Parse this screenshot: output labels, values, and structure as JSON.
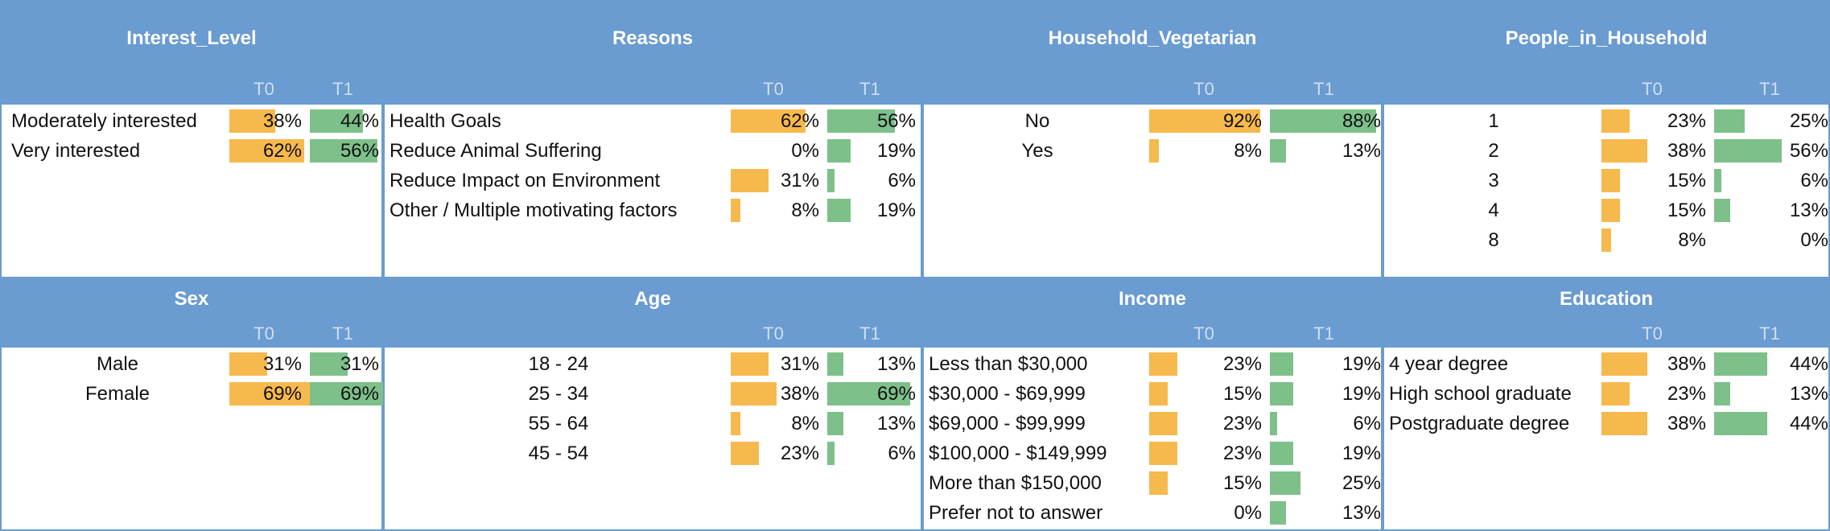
{
  "chart_data": [
    {
      "type": "bar",
      "title": "Interest_Level",
      "series": [
        {
          "name": "T0",
          "values": [
            38,
            62
          ]
        },
        {
          "name": "T1",
          "values": [
            44,
            56
          ]
        }
      ],
      "categories": [
        "Moderately interested",
        "Very interested"
      ],
      "value_labels": {
        "T0": [
          "38%",
          "62%"
        ],
        "T1": [
          "44%",
          "56%"
        ]
      },
      "category_align": "left"
    },
    {
      "type": "bar",
      "title": "Reasons",
      "series": [
        {
          "name": "T0",
          "values": [
            62,
            0,
            31,
            8
          ]
        },
        {
          "name": "T1",
          "values": [
            56,
            19,
            6,
            19
          ]
        }
      ],
      "categories": [
        "Health Goals",
        "Reduce Animal Suffering",
        "Reduce Impact on Environment",
        "Other / Multiple motivating factors"
      ],
      "value_labels": {
        "T0": [
          "62%",
          "0%",
          "31%",
          "8%"
        ],
        "T1": [
          "56%",
          "19%",
          "6%",
          "19%"
        ]
      },
      "category_align": "left"
    },
    {
      "type": "bar",
      "title": "Household_Vegetarian",
      "series": [
        {
          "name": "T0",
          "values": [
            92,
            8
          ]
        },
        {
          "name": "T1",
          "values": [
            88,
            13
          ]
        }
      ],
      "categories": [
        "No",
        "Yes"
      ],
      "value_labels": {
        "T0": [
          "92%",
          "8%"
        ],
        "T1": [
          "88%",
          "13%"
        ]
      },
      "category_align": "center"
    },
    {
      "type": "bar",
      "title": "People_in_Household",
      "series": [
        {
          "name": "T0",
          "values": [
            23,
            38,
            15,
            15,
            8
          ]
        },
        {
          "name": "T1",
          "values": [
            25,
            56,
            6,
            13,
            0
          ]
        }
      ],
      "categories": [
        "1",
        "2",
        "3",
        "4",
        "8"
      ],
      "value_labels": {
        "T0": [
          "23%",
          "38%",
          "15%",
          "15%",
          "8%"
        ],
        "T1": [
          "25%",
          "56%",
          "6%",
          "13%",
          "0%"
        ]
      },
      "category_align": "center"
    },
    {
      "type": "bar",
      "title": "Sex",
      "series": [
        {
          "name": "T0",
          "values": [
            31,
            69
          ]
        },
        {
          "name": "T1",
          "values": [
            31,
            69
          ]
        }
      ],
      "categories": [
        "Male",
        "Female"
      ],
      "value_labels": {
        "T0": [
          "31%",
          "69%"
        ],
        "T1": [
          "31%",
          "69%"
        ]
      },
      "category_align": "center"
    },
    {
      "type": "bar",
      "title": "Age",
      "series": [
        {
          "name": "T0",
          "values": [
            31,
            38,
            8,
            23
          ]
        },
        {
          "name": "T1",
          "values": [
            13,
            69,
            13,
            6
          ]
        }
      ],
      "categories": [
        "18 - 24",
        "25 - 34",
        "55 - 64",
        "45 - 54"
      ],
      "value_labels": {
        "T0": [
          "31%",
          "38%",
          "8%",
          "23%"
        ],
        "T1": [
          "13%",
          "69%",
          "13%",
          "6%"
        ]
      },
      "category_align": "center"
    },
    {
      "type": "bar",
      "title": "Income",
      "series": [
        {
          "name": "T0",
          "values": [
            23,
            15,
            23,
            23,
            15,
            0
          ]
        },
        {
          "name": "T1",
          "values": [
            19,
            19,
            6,
            19,
            25,
            13
          ]
        }
      ],
      "categories": [
        "Less than $30,000",
        "$30,000 - $69,999",
        "$69,000 - $99,999",
        "$100,000 - $149,999",
        "More than $150,000",
        "Prefer not to answer"
      ],
      "value_labels": {
        "T0": [
          "23%",
          "15%",
          "23%",
          "23%",
          "15%",
          "0%"
        ],
        "T1": [
          "19%",
          "19%",
          "6%",
          "19%",
          "25%",
          "13%"
        ]
      },
      "category_align": "left"
    },
    {
      "type": "bar",
      "title": "Education",
      "series": [
        {
          "name": "T0",
          "values": [
            38,
            23,
            38
          ]
        },
        {
          "name": "T1",
          "values": [
            44,
            13,
            44
          ]
        }
      ],
      "categories": [
        "4 year degree",
        "High school graduate",
        "Postgraduate degree"
      ],
      "value_labels": {
        "T0": [
          "38%",
          "23%",
          "38%"
        ],
        "T1": [
          "44%",
          "13%",
          "44%"
        ]
      },
      "category_align": "left"
    }
  ],
  "colors": {
    "header": "#6a9bd1",
    "t0": "#f6b94d",
    "t1": "#7dc08a",
    "header_text": "#ffffff",
    "t_label": "#cfdff1"
  }
}
